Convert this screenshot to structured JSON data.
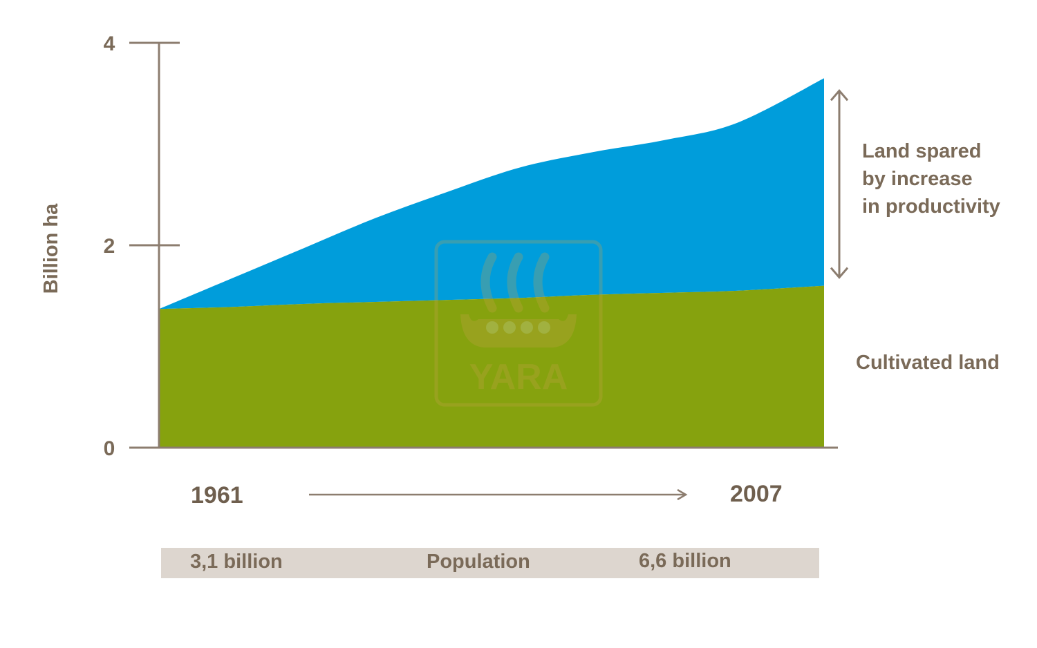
{
  "colors": {
    "axis": "#8c7d6f",
    "text": "#7a6a58",
    "land_spared": "#009ddb",
    "cultivated": "#86a20e",
    "population_band": "#ddd6cf",
    "watermark": "#c9a24a"
  },
  "chart_data": {
    "type": "area",
    "ylabel": "Billion ha",
    "ylim": [
      0,
      4
    ],
    "yticks": [
      "0",
      "2",
      "4"
    ],
    "x": [
      1961,
      1966,
      1971,
      1976,
      1981,
      1986,
      1991,
      1996,
      2001,
      2007
    ],
    "x_start_label": "1961",
    "x_end_label": "2007",
    "series": [
      {
        "name": "Cultivated land",
        "values": [
          1.37,
          1.39,
          1.42,
          1.44,
          1.46,
          1.48,
          1.51,
          1.53,
          1.55,
          1.6
        ]
      },
      {
        "name": "Land spared by increase in productivity",
        "label_lines": [
          "Land spared",
          "by increase",
          "in productivity"
        ],
        "values": [
          0.0,
          0.28,
          0.55,
          0.83,
          1.07,
          1.29,
          1.41,
          1.51,
          1.66,
          2.05
        ]
      }
    ],
    "stacked": true,
    "population": {
      "label": "Population",
      "start": "3,1 billion",
      "end": "6,6 billion"
    },
    "watermark": "YARA"
  }
}
